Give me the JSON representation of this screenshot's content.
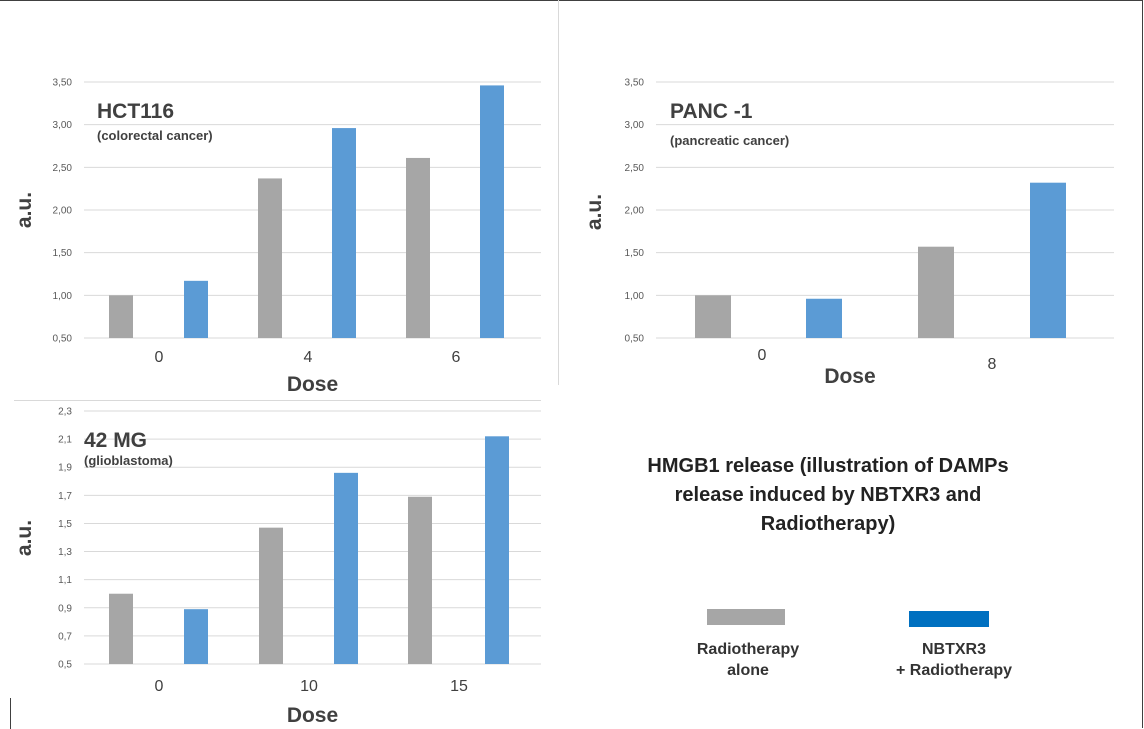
{
  "caption": "HMGB1 release (illustration of DAMPs release induced by NBTXR3 and Radiotherapy)",
  "legend": [
    {
      "label_line1": "Radiotherapy",
      "label_line2": "alone",
      "color": "#a6a6a6"
    },
    {
      "label_line1": "NBTXR3",
      "label_line2": "+ Radiotherapy",
      "color": "#0070c0"
    }
  ],
  "colors": {
    "radiotherapy_bar": "#a6a6a6",
    "nbtxr3_bar": "#5b9bd5",
    "grid": "#d9d9d9",
    "text": "#404040"
  },
  "chart_data": [
    {
      "type": "bar",
      "title": "HCT116",
      "subtitle": "(colorectal cancer)",
      "xlabel": "Dose",
      "ylabel": "a.u.",
      "ylim": [
        0.5,
        3.5
      ],
      "yticks": [
        "0,50",
        "1,00",
        "1,50",
        "2,00",
        "2,50",
        "3,00",
        "3,50"
      ],
      "categories": [
        "0",
        "4",
        "6"
      ],
      "series": [
        {
          "name": "Radiotherapy alone",
          "values": [
            1.0,
            2.37,
            2.61
          ]
        },
        {
          "name": "NBTXR3 + Radiotherapy",
          "values": [
            1.17,
            2.96,
            3.46
          ]
        }
      ],
      "grid": true,
      "legend": "none"
    },
    {
      "type": "bar",
      "title": "PANC -1",
      "subtitle": "(pancreatic cancer)",
      "xlabel": "Dose",
      "ylabel": "a.u.",
      "ylim": [
        0.5,
        3.5
      ],
      "yticks": [
        "0,50",
        "1,00",
        "1,50",
        "2,00",
        "2,50",
        "3,00",
        "3,50"
      ],
      "categories": [
        "0",
        "8"
      ],
      "series": [
        {
          "name": "Radiotherapy alone",
          "values": [
            1.0,
            1.57
          ]
        },
        {
          "name": "NBTXR3 + Radiotherapy",
          "values": [
            0.96,
            2.32
          ]
        }
      ],
      "grid": true,
      "legend": "none"
    },
    {
      "type": "bar",
      "title": "42 MG",
      "subtitle": "(glioblastoma)",
      "xlabel": "Dose",
      "ylabel": "a.u.",
      "ylim": [
        0.5,
        2.3
      ],
      "yticks": [
        "0,5",
        "0,7",
        "0,9",
        "1,1",
        "1,3",
        "1,5",
        "1,7",
        "1,9",
        "2,1",
        "2,3"
      ],
      "categories": [
        "0",
        "10",
        "15"
      ],
      "series": [
        {
          "name": "Radiotherapy alone",
          "values": [
            1.0,
            1.47,
            1.69
          ]
        },
        {
          "name": "NBTXR3 + Radiotherapy",
          "values": [
            0.89,
            1.86,
            2.12
          ]
        }
      ],
      "grid": true,
      "legend": "none"
    }
  ]
}
